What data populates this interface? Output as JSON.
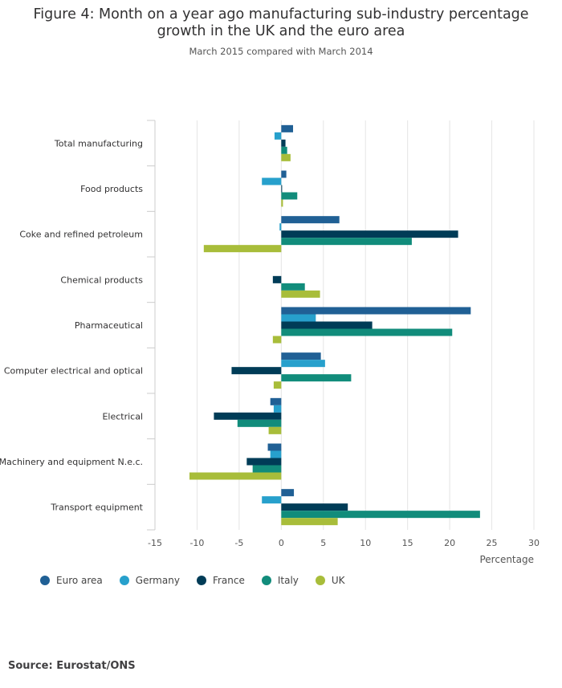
{
  "chart_data": {
    "type": "bar",
    "orientation": "horizontal",
    "title_lines": [
      "Figure 4: Month on a year ago manufacturing sub-industry percentage",
      "growth in the UK and the euro area"
    ],
    "subtitle": "March 2015 compared with March 2014",
    "xlabel": "Percentage",
    "xlim": [
      -15,
      30
    ],
    "xticks": [
      -15,
      -10,
      -5,
      0,
      5,
      10,
      15,
      20,
      25,
      30
    ],
    "grid": true,
    "legend_position": "bottom",
    "categories": [
      "Total manufacturing",
      "Food products",
      "Coke and refined petroleum",
      "Chemical products",
      "Pharmaceutical",
      "Computer electrical and optical",
      "Electrical",
      "Machinery and equipment N.e.c.",
      "Transport equipment"
    ],
    "series": [
      {
        "name": "Euro area",
        "color": "#206095",
        "values": [
          1.4,
          0.6,
          6.9,
          0.0,
          22.5,
          4.7,
          -1.3,
          -1.6,
          1.5
        ]
      },
      {
        "name": "Germany",
        "color": "#27a0cc",
        "values": [
          -0.8,
          -2.3,
          -0.2,
          0.0,
          4.1,
          5.2,
          -0.9,
          -1.3,
          -2.3
        ]
      },
      {
        "name": "France",
        "color": "#003c57",
        "values": [
          0.5,
          0.1,
          21.0,
          -1.0,
          10.8,
          -5.9,
          -8.0,
          -4.1,
          7.9
        ]
      },
      {
        "name": "Italy",
        "color": "#118c7b",
        "values": [
          0.7,
          1.9,
          15.5,
          2.8,
          20.3,
          8.3,
          -5.2,
          -3.4,
          23.6
        ]
      },
      {
        "name": "UK",
        "color": "#a8bd3a",
        "values": [
          1.1,
          0.2,
          -9.2,
          4.6,
          -1.0,
          -0.9,
          -1.5,
          -10.9,
          6.7
        ]
      }
    ]
  },
  "source": "Source: Eurostat/ONS"
}
